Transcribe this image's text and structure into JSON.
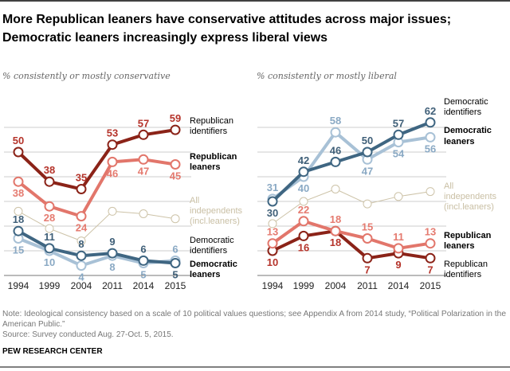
{
  "title_lines": [
    "More Republican leaners have conservative attitudes across major issues;",
    "Democratic leaners increasingly express liberal views"
  ],
  "notes": [
    "Note: Ideological consistency based on a scale of 10 political values questions; see Appendix A from 2014 study, “Political Polarization in the",
    "American Public.”",
    "Source: Survey conducted Aug. 27-Oct. 5, 2015."
  ],
  "source_org": "PEW RESEARCH CENTER",
  "chart_data": [
    {
      "type": "line",
      "subtitle": "% consistently or mostly conservative",
      "categories": [
        "1994",
        "1999",
        "2004",
        "2011",
        "2014",
        "2015"
      ],
      "ylim": [
        0,
        60
      ],
      "grid": true,
      "series": [
        {
          "name": "Republican identifiers",
          "label_lines": [
            "Republican",
            "identifiers"
          ],
          "bold": false,
          "color": "#8B2318",
          "label_color": "#B5332A",
          "values": [
            50,
            38,
            35,
            53,
            57,
            59
          ],
          "labeled": true
        },
        {
          "name": "Republican leaners",
          "label_lines": [
            "Republican",
            "leaners"
          ],
          "bold": true,
          "color": "#E2766B",
          "label_color": "#E57B70",
          "values": [
            38,
            28,
            24,
            46,
            47,
            45
          ],
          "labeled": true
        },
        {
          "name": "All independents (incl.leaners)",
          "label_lines": [
            "All",
            "independents",
            "(incl.leaners)"
          ],
          "bold": false,
          "color": "#CDC3A8",
          "label_color": "#C9BFA4",
          "values": [
            26,
            19,
            14,
            26,
            25,
            23
          ],
          "labeled": false
        },
        {
          "name": "Democratic identifiers",
          "label_lines": [
            "Democratic",
            "identifiers"
          ],
          "bold": false,
          "color": "#3F6682",
          "label_color": "#3F5F78",
          "values": [
            18,
            11,
            8,
            9,
            6,
            5
          ],
          "labeled": true
        },
        {
          "name": "Democratic leaners",
          "label_lines": [
            "Democratic",
            "leaners"
          ],
          "bold": true,
          "color": "#A8C1D6",
          "label_color": "#8AA9C4",
          "values": [
            15,
            10,
            4,
            8,
            5,
            6
          ],
          "labeled": true
        }
      ]
    },
    {
      "type": "line",
      "subtitle": "% consistently or mostly liberal",
      "categories": [
        "1994",
        "1999",
        "2004",
        "2011",
        "2014",
        "2015"
      ],
      "ylim": [
        0,
        60
      ],
      "grid": true,
      "series": [
        {
          "name": "Democratic identifiers",
          "label_lines": [
            "Democratic",
            "identifiers"
          ],
          "bold": false,
          "color": "#3F6682",
          "label_color": "#3F5F78",
          "values": [
            30,
            42,
            46,
            50,
            57,
            62
          ],
          "labeled": true
        },
        {
          "name": "Democratic leaners",
          "label_lines": [
            "Democratic",
            "leaners"
          ],
          "bold": true,
          "color": "#A8C1D6",
          "label_color": "#8AA9C4",
          "values": [
            31,
            40,
            58,
            47,
            54,
            56
          ],
          "labeled": true
        },
        {
          "name": "All independents (incl.leaners)",
          "label_lines": [
            "All",
            "independents",
            "(incl.leaners)"
          ],
          "bold": false,
          "color": "#CDC3A8",
          "label_color": "#C9BFA4",
          "values": [
            21,
            30,
            35,
            29,
            32,
            34
          ],
          "labeled": false
        },
        {
          "name": "Republican leaners",
          "label_lines": [
            "Republican",
            "leaners"
          ],
          "bold": true,
          "color": "#E2766B",
          "label_color": "#E57B70",
          "values": [
            13,
            22,
            18,
            15,
            11,
            13
          ],
          "labeled": true
        },
        {
          "name": "Republican identifiers",
          "label_lines": [
            "Republican",
            "identifiers"
          ],
          "bold": false,
          "color": "#8B2318",
          "label_color": "#B5332A",
          "values": [
            10,
            16,
            18,
            7,
            9,
            7
          ],
          "labeled": true
        }
      ]
    }
  ]
}
